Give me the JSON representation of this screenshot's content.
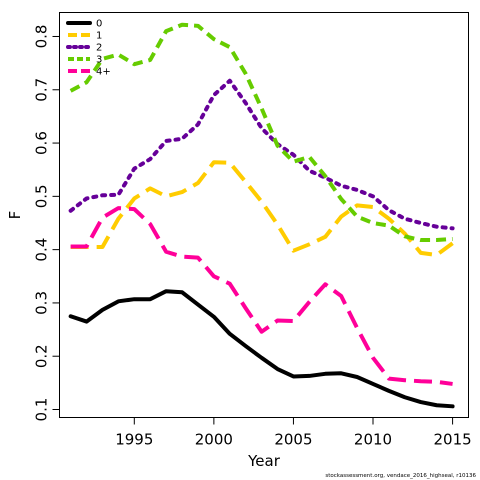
{
  "chart_data": {
    "type": "line",
    "xlabel": "Year",
    "ylabel": "F",
    "xlim": [
      1990.3,
      2016.0
    ],
    "ylim": [
      0.085,
      0.845
    ],
    "x_ticks": [
      1995,
      2000,
      2005,
      2010,
      2015
    ],
    "y_ticks": [
      0.1,
      0.2,
      0.3,
      0.4,
      0.5,
      0.6,
      0.7,
      0.8
    ],
    "legend_position": "top-left",
    "credit": "stockassessment.org,  vendace_2016_highseal, r10136",
    "x": [
      1991,
      1992,
      1993,
      1994,
      1995,
      1996,
      1997,
      1998,
      1999,
      2000,
      2001,
      2002,
      2003,
      2004,
      2005,
      2006,
      2007,
      2008,
      2009,
      2010,
      2011,
      2012,
      2013,
      2014,
      2015
    ],
    "series": [
      {
        "name": "0",
        "color": "#000000",
        "dash": "solid",
        "values": [
          0.275,
          0.265,
          0.287,
          0.303,
          0.307,
          0.307,
          0.322,
          0.32,
          0.297,
          0.274,
          0.242,
          0.219,
          0.197,
          0.176,
          0.162,
          0.163,
          0.167,
          0.168,
          0.161,
          0.148,
          0.135,
          0.123,
          0.114,
          0.108,
          0.106
        ]
      },
      {
        "name": "1",
        "color": "#ffcc00",
        "dash": "long",
        "values": [
          0.405,
          0.405,
          0.405,
          0.458,
          0.496,
          0.515,
          0.5,
          0.508,
          0.525,
          0.564,
          0.563,
          0.527,
          0.49,
          0.447,
          0.398,
          0.41,
          0.424,
          0.462,
          0.483,
          0.48,
          0.458,
          0.43,
          0.394,
          0.39,
          0.412
        ]
      },
      {
        "name": "2",
        "color": "#660099",
        "dash": "dot",
        "values": [
          0.473,
          0.496,
          0.502,
          0.503,
          0.552,
          0.57,
          0.604,
          0.608,
          0.635,
          0.69,
          0.717,
          0.675,
          0.628,
          0.598,
          0.578,
          0.548,
          0.535,
          0.52,
          0.512,
          0.5,
          0.474,
          0.458,
          0.45,
          0.443,
          0.44
        ]
      },
      {
        "name": "3",
        "color": "#66cc00",
        "dash": "dash",
        "values": [
          0.698,
          0.714,
          0.758,
          0.766,
          0.748,
          0.756,
          0.81,
          0.822,
          0.82,
          0.795,
          0.78,
          0.73,
          0.665,
          0.595,
          0.565,
          0.574,
          0.538,
          0.495,
          0.462,
          0.45,
          0.445,
          0.425,
          0.418,
          0.418,
          0.42
        ]
      },
      {
        "name": "4+",
        "color": "#ff0099",
        "dash": "long",
        "values": [
          0.406,
          0.406,
          0.46,
          0.478,
          0.476,
          0.448,
          0.396,
          0.387,
          0.385,
          0.35,
          0.336,
          0.29,
          0.246,
          0.267,
          0.266,
          0.302,
          0.335,
          0.313,
          0.253,
          0.197,
          0.158,
          0.155,
          0.153,
          0.152,
          0.148
        ]
      }
    ]
  }
}
